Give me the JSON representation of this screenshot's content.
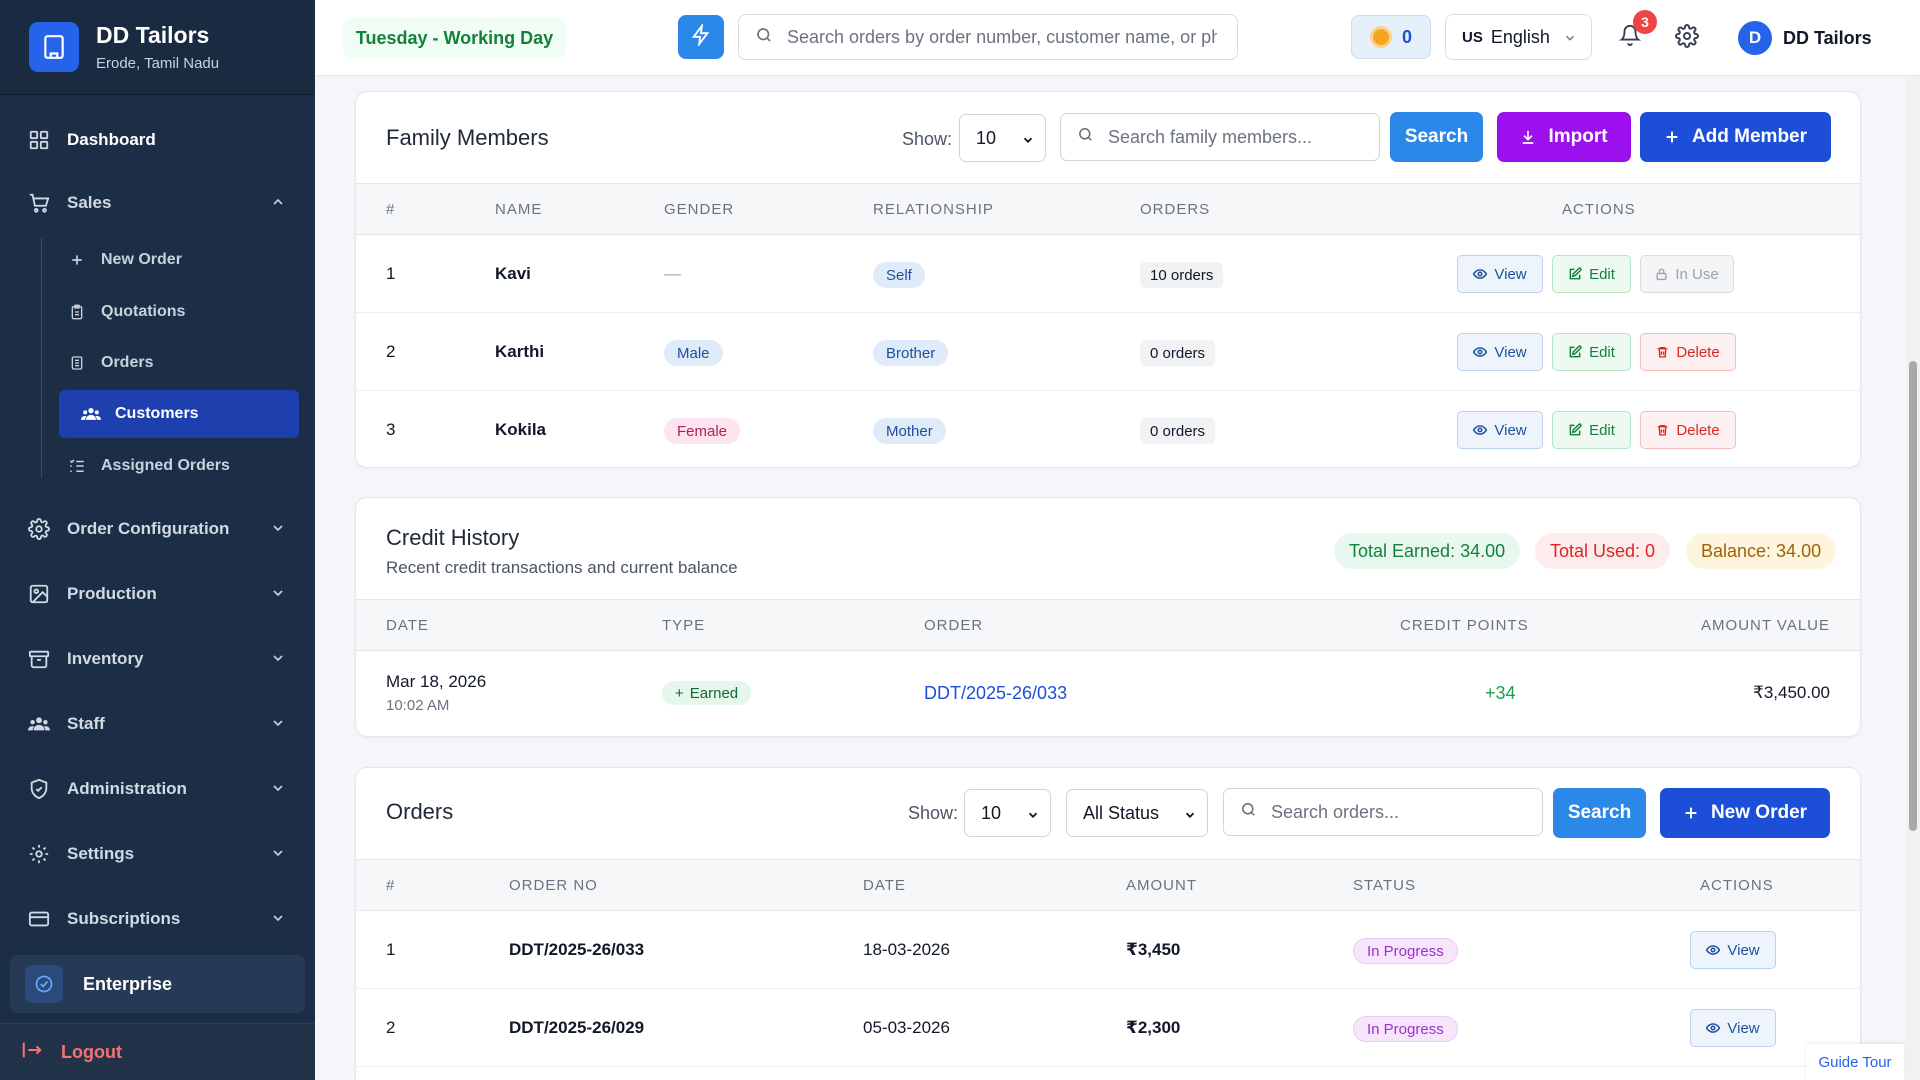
{
  "brand": {
    "name": "DD Tailors",
    "location": "Erode, Tamil Nadu"
  },
  "sidebar": {
    "dashboard": "Dashboard",
    "sales": "Sales",
    "sales_items": [
      "New Order",
      "Quotations",
      "Orders",
      "Customers",
      "Assigned Orders"
    ],
    "sections": [
      "Order Configuration",
      "Production",
      "Inventory",
      "Staff",
      "Administration",
      "Settings",
      "Subscriptions"
    ],
    "plan": "Enterprise",
    "logout": "Logout"
  },
  "topbar": {
    "day_status": "Tuesday - Working Day",
    "search_placeholder": "Search orders by order number, customer name, or phone",
    "credits": "0",
    "language_code": "US",
    "language": "English",
    "notifications": "3",
    "user_initial": "D",
    "user_name": "DD Tailors"
  },
  "family": {
    "title": "Family Members",
    "show_label": "Show:",
    "page_size": "10",
    "search_placeholder": "Search family members...",
    "search_btn": "Search",
    "import_btn": "Import",
    "add_btn": "Add Member",
    "columns": [
      "#",
      "NAME",
      "GENDER",
      "RELATIONSHIP",
      "ORDERS",
      "ACTIONS"
    ],
    "rows": [
      {
        "num": "1",
        "name": "Kavi",
        "gender": "—",
        "relationship": "Self",
        "orders": "10 orders",
        "view": "View",
        "edit": "Edit",
        "third": "In Use"
      },
      {
        "num": "2",
        "name": "Karthi",
        "gender": "Male",
        "relationship": "Brother",
        "orders": "0 orders",
        "view": "View",
        "edit": "Edit",
        "third": "Delete"
      },
      {
        "num": "3",
        "name": "Kokila",
        "gender": "Female",
        "relationship": "Mother",
        "orders": "0 orders",
        "view": "View",
        "edit": "Edit",
        "third": "Delete"
      }
    ]
  },
  "credit": {
    "title": "Credit History",
    "subtitle": "Recent credit transactions and current balance",
    "total_earned": "Total Earned: 34.00",
    "total_used": "Total Used: 0",
    "balance": "Balance: 34.00",
    "columns": [
      "DATE",
      "TYPE",
      "ORDER",
      "CREDIT POINTS",
      "AMOUNT VALUE"
    ],
    "rows": [
      {
        "date": "Mar 18, 2026",
        "time": "10:02 AM",
        "type": "Earned",
        "order": "DDT/2025-26/033",
        "points": "+34",
        "amount": "₹3,450.00"
      }
    ]
  },
  "orders": {
    "title": "Orders",
    "show_label": "Show:",
    "page_size": "10",
    "status_filter": "All Status",
    "search_placeholder": "Search orders...",
    "search_btn": "Search",
    "new_btn": "New Order",
    "columns": [
      "#",
      "ORDER NO",
      "DATE",
      "AMOUNT",
      "STATUS",
      "ACTIONS"
    ],
    "rows": [
      {
        "num": "1",
        "order_no": "DDT/2025-26/033",
        "date": "18-03-2026",
        "amount": "₹3,450",
        "status": "In Progress",
        "view": "View"
      },
      {
        "num": "2",
        "order_no": "DDT/2025-26/029",
        "date": "05-03-2026",
        "amount": "₹2,300",
        "status": "In Progress",
        "view": "View"
      }
    ]
  },
  "guide_tour": "Guide Tour",
  "colors": {
    "sidebar": "#1c2e45",
    "primary": "#2b88e8",
    "navy": "#1d4ed8",
    "purple": "#9b10ec",
    "active_nav": "#1e40af"
  }
}
